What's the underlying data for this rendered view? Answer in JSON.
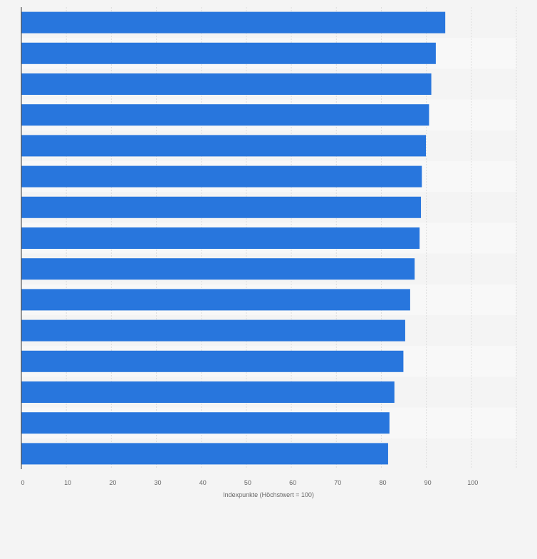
{
  "chart_data": {
    "type": "bar",
    "orientation": "horizontal",
    "categories": [
      "",
      "",
      "",
      "",
      "",
      "",
      "",
      "",
      "",
      "",
      "",
      "",
      "",
      "",
      ""
    ],
    "values": [
      94.2,
      92.1,
      91.1,
      90.6,
      89.9,
      89.0,
      88.8,
      88.5,
      87.4,
      86.4,
      85.3,
      84.9,
      82.9,
      81.8,
      81.5
    ],
    "title": "",
    "xlabel": "Indexpunkte (Höchstwert = 100)",
    "ylabel": "",
    "xlim": [
      0,
      110
    ],
    "xticks": [
      "0",
      "10",
      "20",
      "30",
      "40",
      "50",
      "60",
      "70",
      "80",
      "90",
      "100"
    ],
    "grid": true,
    "legend": "none",
    "bar_color": "#2876dd",
    "background_color": "#f4f4f4",
    "row_band_color": "#f8f8f8"
  }
}
